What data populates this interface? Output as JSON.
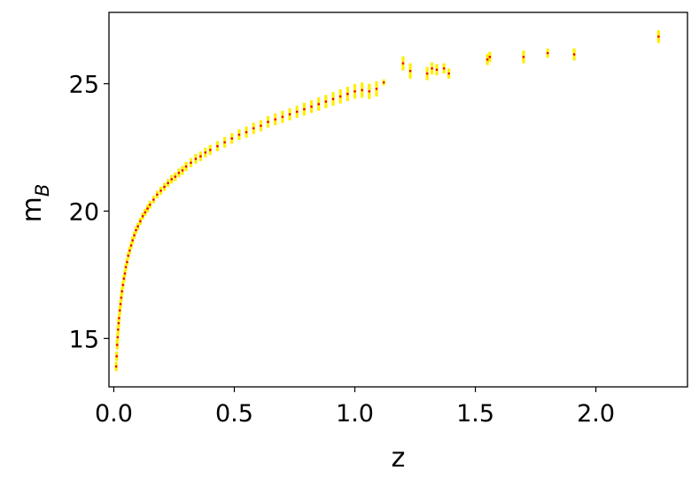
{
  "chart_data": {
    "type": "scatter",
    "title": "",
    "xlabel": "z",
    "ylabel_main": "m",
    "ylabel_sub": "B",
    "xlim": [
      -0.02,
      2.38
    ],
    "ylim": [
      13.1,
      27.8
    ],
    "xticks": [
      0.0,
      0.5,
      1.0,
      1.5,
      2.0
    ],
    "xtick_labels": [
      "0.0",
      "0.5",
      "1.0",
      "1.5",
      "2.0"
    ],
    "yticks": [
      15,
      20,
      25
    ],
    "ytick_labels": [
      "15",
      "20",
      "25"
    ],
    "grid": false,
    "legend": "none",
    "point_color": "#ee0000",
    "errorbar_color": "#ffee00",
    "series": [
      {
        "points": [
          [
            0.01,
            13.9,
            0.18
          ],
          [
            0.012,
            14.3,
            0.18
          ],
          [
            0.014,
            14.75,
            0.18
          ],
          [
            0.016,
            15.05,
            0.17
          ],
          [
            0.018,
            15.35,
            0.17
          ],
          [
            0.02,
            15.6,
            0.17
          ],
          [
            0.022,
            15.8,
            0.16
          ],
          [
            0.025,
            16.1,
            0.16
          ],
          [
            0.028,
            16.35,
            0.16
          ],
          [
            0.031,
            16.6,
            0.15
          ],
          [
            0.034,
            16.85,
            0.15
          ],
          [
            0.038,
            17.1,
            0.15
          ],
          [
            0.042,
            17.35,
            0.15
          ],
          [
            0.046,
            17.55,
            0.14
          ],
          [
            0.05,
            17.8,
            0.14
          ],
          [
            0.055,
            18.0,
            0.14
          ],
          [
            0.06,
            18.25,
            0.14
          ],
          [
            0.066,
            18.45,
            0.14
          ],
          [
            0.072,
            18.65,
            0.14
          ],
          [
            0.078,
            18.85,
            0.14
          ],
          [
            0.085,
            19.05,
            0.14
          ],
          [
            0.092,
            19.25,
            0.14
          ],
          [
            0.1,
            19.4,
            0.14
          ],
          [
            0.11,
            19.6,
            0.14
          ],
          [
            0.12,
            19.8,
            0.14
          ],
          [
            0.13,
            19.95,
            0.14
          ],
          [
            0.14,
            20.1,
            0.15
          ],
          [
            0.15,
            20.25,
            0.15
          ],
          [
            0.165,
            20.45,
            0.15
          ],
          [
            0.18,
            20.65,
            0.15
          ],
          [
            0.195,
            20.8,
            0.16
          ],
          [
            0.21,
            20.95,
            0.16
          ],
          [
            0.225,
            21.1,
            0.16
          ],
          [
            0.24,
            21.25,
            0.17
          ],
          [
            0.255,
            21.35,
            0.17
          ],
          [
            0.27,
            21.5,
            0.17
          ],
          [
            0.285,
            21.6,
            0.18
          ],
          [
            0.3,
            21.75,
            0.18
          ],
          [
            0.32,
            21.9,
            0.18
          ],
          [
            0.34,
            22.05,
            0.19
          ],
          [
            0.36,
            22.15,
            0.19
          ],
          [
            0.38,
            22.3,
            0.19
          ],
          [
            0.4,
            22.4,
            0.2
          ],
          [
            0.43,
            22.55,
            0.2
          ],
          [
            0.46,
            22.7,
            0.21
          ],
          [
            0.49,
            22.85,
            0.21
          ],
          [
            0.52,
            23.0,
            0.21
          ],
          [
            0.55,
            23.1,
            0.22
          ],
          [
            0.58,
            23.25,
            0.22
          ],
          [
            0.61,
            23.35,
            0.22
          ],
          [
            0.64,
            23.5,
            0.23
          ],
          [
            0.67,
            23.6,
            0.23
          ],
          [
            0.7,
            23.7,
            0.24
          ],
          [
            0.73,
            23.8,
            0.24
          ],
          [
            0.76,
            23.9,
            0.24
          ],
          [
            0.79,
            24.0,
            0.25
          ],
          [
            0.82,
            24.1,
            0.25
          ],
          [
            0.85,
            24.2,
            0.26
          ],
          [
            0.88,
            24.3,
            0.26
          ],
          [
            0.91,
            24.4,
            0.27
          ],
          [
            0.94,
            24.5,
            0.28
          ],
          [
            0.97,
            24.6,
            0.28
          ],
          [
            1.0,
            24.7,
            0.29
          ],
          [
            1.03,
            24.75,
            0.3
          ],
          [
            1.06,
            24.7,
            0.3
          ],
          [
            1.09,
            24.8,
            0.3
          ],
          [
            1.12,
            25.05,
            0.12
          ],
          [
            1.2,
            25.8,
            0.28
          ],
          [
            1.23,
            25.5,
            0.3
          ],
          [
            1.3,
            25.4,
            0.26
          ],
          [
            1.32,
            25.6,
            0.24
          ],
          [
            1.34,
            25.55,
            0.22
          ],
          [
            1.37,
            25.6,
            0.2
          ],
          [
            1.39,
            25.4,
            0.2
          ],
          [
            1.55,
            25.95,
            0.22
          ],
          [
            1.56,
            26.05,
            0.2
          ],
          [
            1.7,
            26.05,
            0.25
          ],
          [
            1.8,
            26.2,
            0.18
          ],
          [
            1.91,
            26.15,
            0.24
          ],
          [
            2.26,
            26.85,
            0.25
          ]
        ]
      }
    ]
  }
}
